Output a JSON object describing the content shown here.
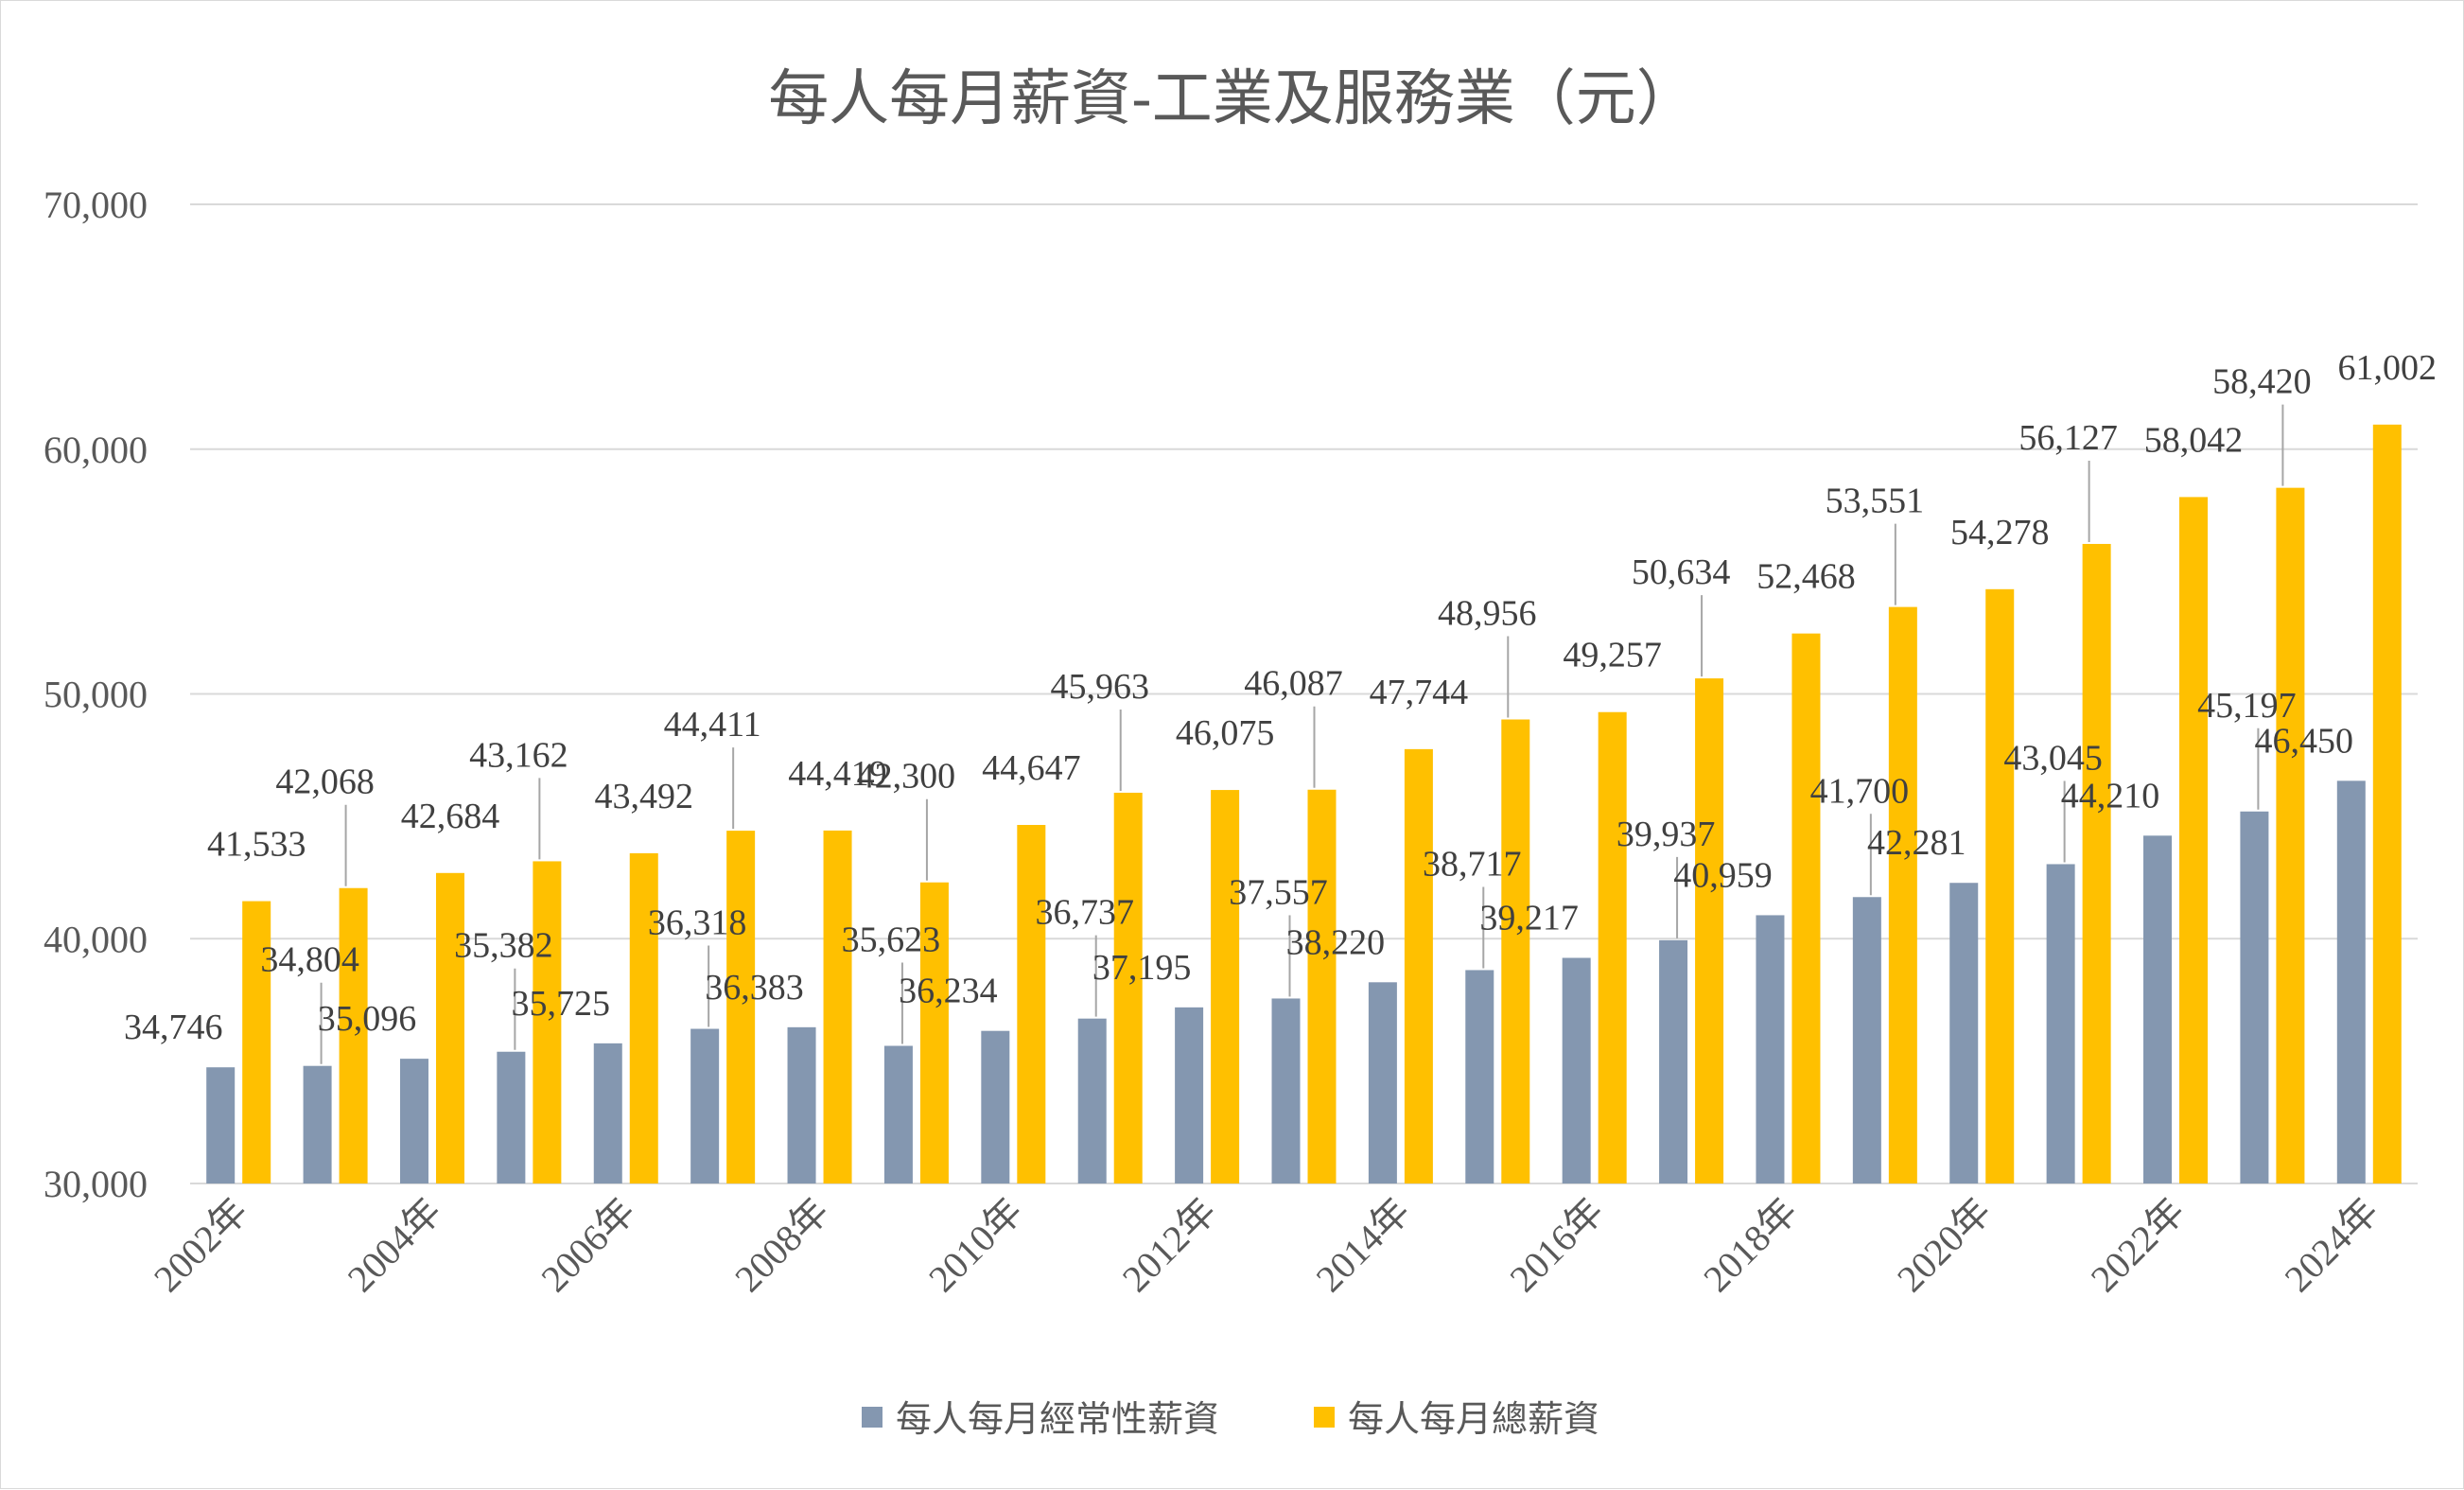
{
  "chart_data": {
    "type": "bar",
    "title": "每人每月薪資-工業及服務業（元）",
    "xlabel": "",
    "ylabel": "",
    "ylim": [
      30000,
      70000
    ],
    "yticks": [
      30000,
      40000,
      50000,
      60000,
      70000
    ],
    "ytick_labels": [
      "30,000",
      "40,000",
      "50,000",
      "60,000",
      "70,000"
    ],
    "grid": true,
    "legend_position": "bottom",
    "categories": [
      "2002年",
      "2003年",
      "2004年",
      "2005年",
      "2006年",
      "2007年",
      "2008年",
      "2009年",
      "2010年",
      "2011年",
      "2012年",
      "2013年",
      "2014年",
      "2015年",
      "2016年",
      "2017年",
      "2018年",
      "2019年",
      "2020年",
      "2021年",
      "2022年",
      "2023年",
      "2024年"
    ],
    "xtick_labels_shown": [
      "2002年",
      "2004年",
      "2006年",
      "2008年",
      "2010年",
      "2012年",
      "2014年",
      "2016年",
      "2018年",
      "2020年",
      "2022年",
      "2024年"
    ],
    "series": [
      {
        "name": "每人每月經常性薪資",
        "color": "#8497b0",
        "values": [
          34746,
          34804,
          35096,
          35382,
          35725,
          36318,
          36383,
          35623,
          36234,
          36737,
          37195,
          37557,
          38220,
          38717,
          39217,
          39937,
          40959,
          41700,
          42281,
          43045,
          44210,
          45197,
          46450
        ],
        "labels": [
          "34,746",
          "34,804",
          "35,096",
          "35,382",
          "35,725",
          "36,318",
          "36,383",
          "35,623",
          "36,234",
          "36,737",
          "37,195",
          "37,557",
          "38,220",
          "38,717",
          "39,217",
          "39,937",
          "40,959",
          "41,700",
          "42,281",
          "43,045",
          "44,210",
          "45,197",
          "46,450"
        ]
      },
      {
        "name": "每人每月總薪資",
        "color": "#ffc000",
        "values": [
          41533,
          42068,
          42684,
          43162,
          43492,
          44411,
          44419,
          42300,
          44647,
          45963,
          46075,
          46087,
          47744,
          48956,
          49257,
          50634,
          52468,
          53551,
          54278,
          56127,
          58042,
          58420,
          61002
        ],
        "labels": [
          "41,533",
          "42,068",
          "42,684",
          "43,162",
          "43,492",
          "44,411",
          "44,419",
          "42,300",
          "44,647",
          "45,963",
          "46,075",
          "46,087",
          "47,744",
          "48,956",
          "49,257",
          "50,634",
          "52,468",
          "53,551",
          "54,278",
          "56,127",
          "58,042",
          "58,420",
          "61,002"
        ]
      }
    ]
  }
}
